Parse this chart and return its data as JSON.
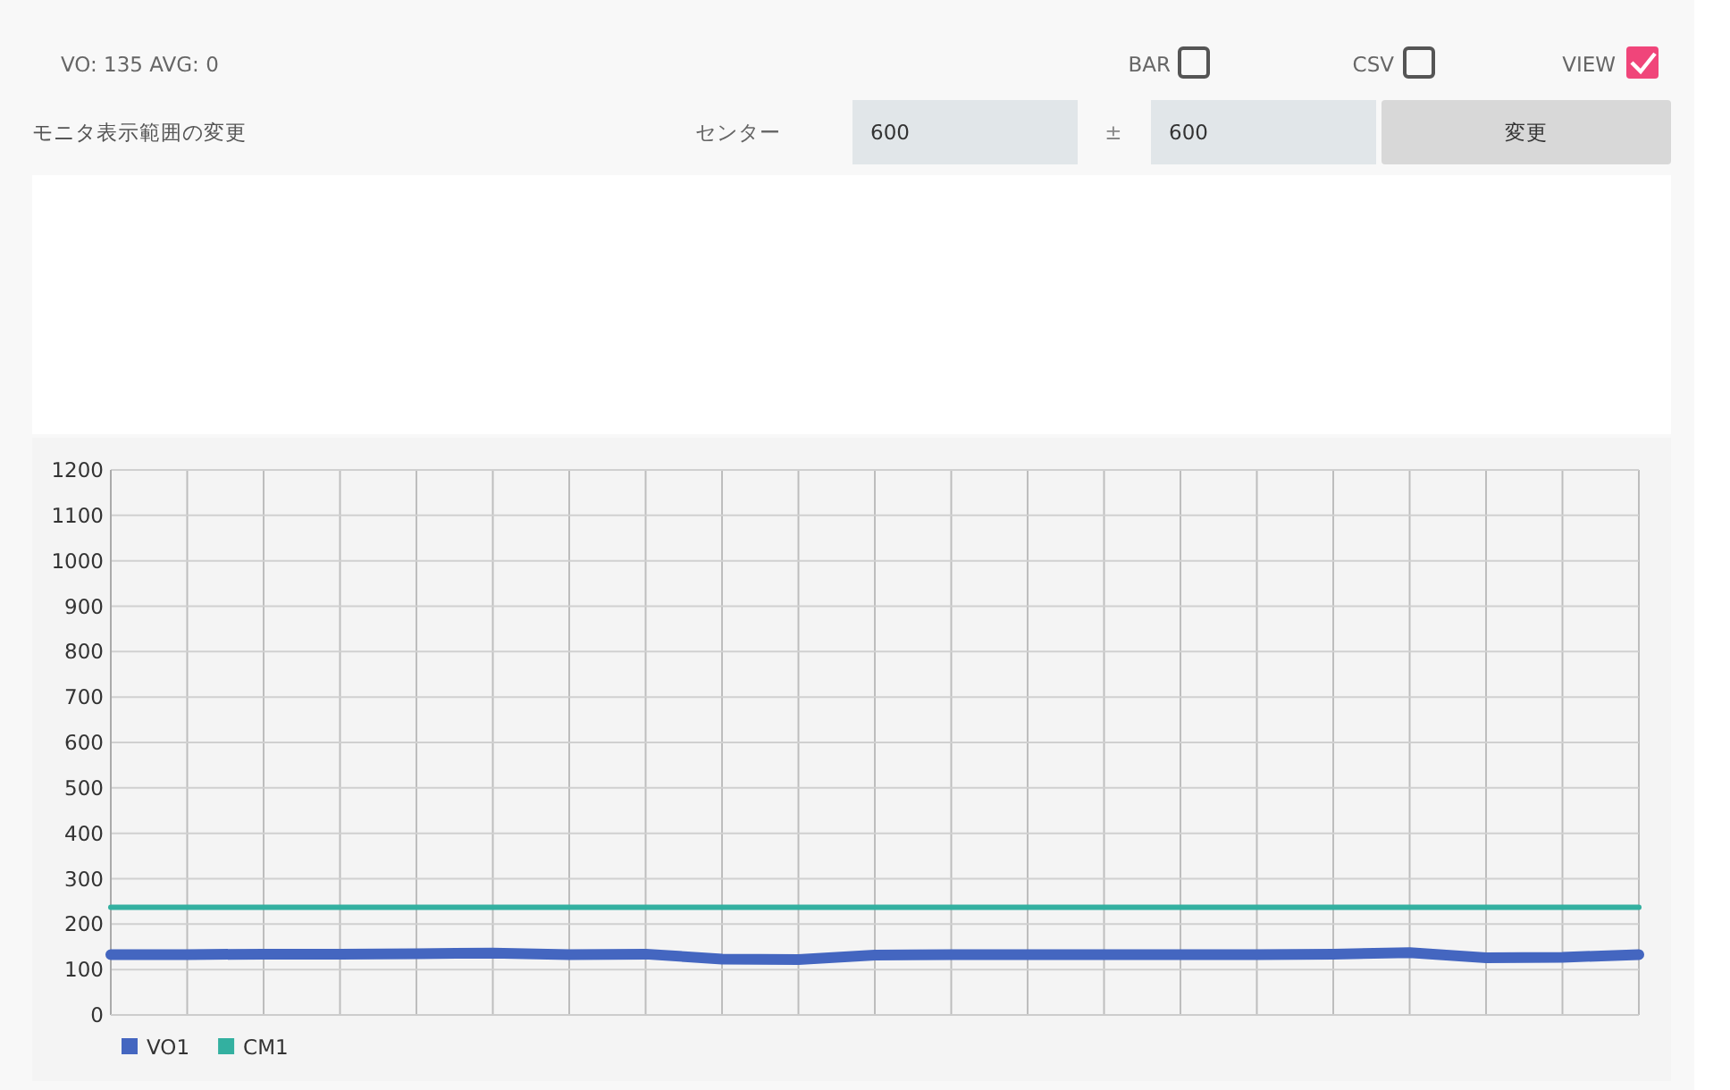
{
  "chart_data": {
    "type": "line",
    "categories": [
      null,
      null,
      null,
      null,
      null,
      null,
      null,
      null,
      null,
      null,
      null,
      null,
      null,
      null,
      null,
      null,
      null,
      null,
      null,
      null,
      null
    ],
    "series": [
      {
        "name": "VO1",
        "color": "#4466c0",
        "values": [
          133,
          133,
          134,
          134,
          135,
          136,
          133,
          134,
          123,
          122,
          132,
          133,
          133,
          133,
          133,
          133,
          134,
          137,
          126,
          127,
          133
        ]
      },
      {
        "name": "CM1",
        "color": "#33b0a0",
        "values": [
          237,
          237,
          237,
          237,
          237,
          237,
          237,
          237,
          237,
          237,
          237,
          237,
          237,
          237,
          237,
          237,
          237,
          237,
          237,
          237,
          237
        ]
      }
    ],
    "ylim": [
      0,
      1200
    ],
    "yticks": [
      0,
      100,
      200,
      300,
      400,
      500,
      600,
      700,
      800,
      900,
      1000,
      1100,
      1200
    ],
    "grid": true,
    "legend": "bottom left",
    "tick_labels": "y",
    "marker": "none",
    "line_style": "solid",
    "annotations": [
      "VO:  135 AVG:  0",
      "BAR",
      "CSV",
      "VIEW",
      "モニタ表示範囲の変更",
      "センター",
      "600",
      "±",
      "600",
      "変更"
    ]
  }
}
